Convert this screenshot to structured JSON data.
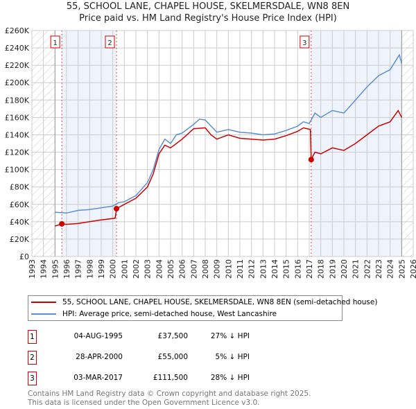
{
  "title_line1": "55, SCHOOL LANE, CHAPEL HOUSE, SKELMERSDALE, WN8 8EN",
  "title_line2": "Price paid vs. HM Land Registry's House Price Index (HPI)",
  "chart_data": {
    "type": "line",
    "xlim": [
      1993,
      2026
    ],
    "ylim": [
      0,
      260000
    ],
    "x_ticks": [
      "1993",
      "1994",
      "1995",
      "1996",
      "1997",
      "1998",
      "1999",
      "2000",
      "2001",
      "2002",
      "2003",
      "2004",
      "2005",
      "2006",
      "2007",
      "2008",
      "2009",
      "2010",
      "2011",
      "2012",
      "2013",
      "2014",
      "2015",
      "2016",
      "2017",
      "2018",
      "2019",
      "2020",
      "2021",
      "2022",
      "2023",
      "2024",
      "2025",
      "2026"
    ],
    "y_ticks": [
      {
        "v": 0,
        "label": "£0"
      },
      {
        "v": 20000,
        "label": "£20K"
      },
      {
        "v": 40000,
        "label": "£40K"
      },
      {
        "v": 60000,
        "label": "£60K"
      },
      {
        "v": 80000,
        "label": "£80K"
      },
      {
        "v": 100000,
        "label": "£100K"
      },
      {
        "v": 120000,
        "label": "£120K"
      },
      {
        "v": 140000,
        "label": "£140K"
      },
      {
        "v": 160000,
        "label": "£160K"
      },
      {
        "v": 180000,
        "label": "£180K"
      },
      {
        "v": 200000,
        "label": "£200K"
      },
      {
        "v": 220000,
        "label": "£220K"
      },
      {
        "v": 240000,
        "label": "£240K"
      },
      {
        "v": 260000,
        "label": "£260K"
      }
    ],
    "grid": true,
    "data_range": [
      1995,
      2025
    ],
    "series": [
      {
        "name": "55, SCHOOL LANE, CHAPEL HOUSE, SKELMERSDALE, WN8 8EN (semi-detached house)",
        "color": "#cc0000",
        "x": [
          1995,
          1995.6,
          1996,
          1997,
          1998,
          1999,
          2000.2,
          2000.33,
          2001,
          2002,
          2003,
          2003.5,
          2004,
          2004.5,
          2005,
          2006,
          2007,
          2008,
          2008.5,
          2009,
          2010,
          2011,
          2012,
          2013,
          2014,
          2015,
          2016,
          2016.5,
          2017.1,
          2017.17,
          2017.5,
          2018,
          2019,
          2020,
          2021,
          2022,
          2023,
          2024,
          2024.7,
          2025
        ],
        "y": [
          35000,
          37500,
          37000,
          38000,
          40000,
          42000,
          44000,
          55000,
          60000,
          67000,
          80000,
          95000,
          118000,
          128000,
          125000,
          135000,
          147000,
          148000,
          140000,
          135000,
          140000,
          136000,
          135000,
          134000,
          135000,
          139000,
          144000,
          148000,
          146000,
          111500,
          120000,
          118000,
          125000,
          122000,
          130000,
          140000,
          150000,
          155000,
          168000,
          160000
        ]
      },
      {
        "name": "HPI: Average price, semi-detached house, West Lancashire",
        "color": "#5b8fd4",
        "x": [
          1995,
          1996,
          1997,
          1998,
          1999,
          2000,
          2000.5,
          2001,
          2002,
          2003,
          2003.5,
          2004,
          2004.5,
          2005,
          2005.5,
          2006,
          2007,
          2007.5,
          2008,
          2008.5,
          2009,
          2010,
          2011,
          2012,
          2013,
          2014,
          2015,
          2016,
          2016.5,
          2017,
          2017.5,
          2018,
          2019,
          2020,
          2021,
          2022,
          2023,
          2024,
          2024.8,
          2025
        ],
        "y": [
          51000,
          50000,
          53000,
          54000,
          56000,
          58000,
          62000,
          63000,
          70000,
          85000,
          100000,
          123000,
          135000,
          130000,
          140000,
          142000,
          152000,
          158000,
          157000,
          150000,
          143000,
          146000,
          143000,
          142000,
          140000,
          141000,
          145000,
          150000,
          155000,
          153000,
          165000,
          160000,
          168000,
          165000,
          180000,
          195000,
          208000,
          215000,
          232000,
          222000
        ]
      }
    ],
    "sales": [
      {
        "label": "1",
        "x": 1995.59,
        "price": 37500,
        "date": "04-AUG-1995",
        "price_text": "£37,500",
        "hpi_text": "27% ↓ HPI"
      },
      {
        "label": "2",
        "x": 2000.32,
        "price": 55000,
        "date": "28-APR-2000",
        "price_text": "£55,000",
        "hpi_text": "5% ↓ HPI"
      },
      {
        "label": "3",
        "x": 2017.17,
        "price": 111500,
        "date": "03-MAR-2017",
        "price_text": "£111,500",
        "hpi_text": "28% ↓ HPI"
      }
    ]
  },
  "legend": {
    "red": "55, SCHOOL LANE, CHAPEL HOUSE, SKELMERSDALE, WN8 8EN (semi-detached house)",
    "blue": "HPI: Average price, semi-detached house, West Lancashire"
  },
  "footer_line1": "Contains HM Land Registry data © Crown copyright and database right 2025.",
  "footer_line2": "This data is licensed under the Open Government Licence v3.0."
}
